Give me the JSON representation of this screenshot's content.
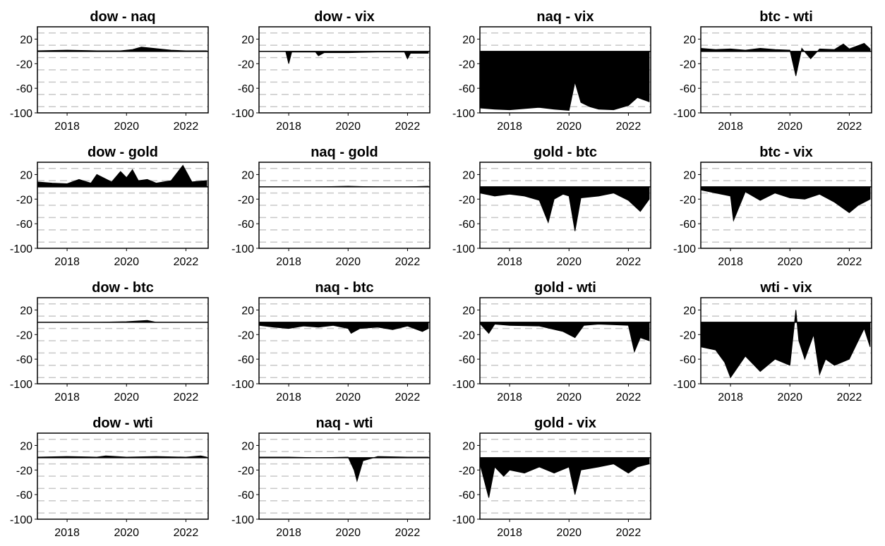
{
  "chart_data": {
    "type": "area",
    "x_start": "2017-01",
    "x_end": "2022-09",
    "x_ticks": [
      "2018",
      "2020",
      "2022"
    ],
    "y_ticks": [
      "20",
      "-20",
      "-60",
      "-100"
    ],
    "ylim": [
      -100,
      40
    ],
    "grid": true,
    "panels": [
      {
        "title": "dow - naq",
        "x": [
          2017.0,
          2018.0,
          2019.0,
          2019.8,
          2020.2,
          2020.5,
          2020.9,
          2021.5,
          2022.0,
          2022.7
        ],
        "y": [
          1,
          2,
          1,
          1,
          3,
          7,
          5,
          2,
          1,
          1
        ]
      },
      {
        "title": "dow - vix",
        "x": [
          2017.0,
          2017.9,
          2018.0,
          2018.1,
          2018.9,
          2019.0,
          2019.2,
          2020.0,
          2021.0,
          2021.9,
          2022.0,
          2022.1,
          2022.7
        ],
        "y": [
          0,
          0,
          -20,
          -1,
          -1,
          -7,
          -2,
          -2,
          -1,
          -1,
          -12,
          -3,
          -3
        ]
      },
      {
        "title": "naq - vix",
        "x": [
          2017.0,
          2017.5,
          2018.0,
          2018.5,
          2019.0,
          2019.5,
          2020.0,
          2020.2,
          2020.4,
          2020.7,
          2021.0,
          2021.5,
          2022.0,
          2022.3,
          2022.7
        ],
        "y": [
          -92,
          -94,
          -95,
          -93,
          -91,
          -94,
          -96,
          -50,
          -83,
          -90,
          -94,
          -95,
          -88,
          -75,
          -82
        ]
      },
      {
        "title": "btc - wti",
        "x": [
          2017.0,
          2017.5,
          2018.0,
          2018.5,
          2019.0,
          2019.5,
          2020.0,
          2020.2,
          2020.4,
          2020.7,
          2021.0,
          2021.5,
          2021.8,
          2022.0,
          2022.5,
          2022.7
        ],
        "y": [
          5,
          3,
          4,
          2,
          5,
          3,
          2,
          -40,
          5,
          -12,
          4,
          3,
          12,
          4,
          13,
          4
        ]
      },
      {
        "title": "dow - gold",
        "x": [
          2017.0,
          2017.5,
          2018.0,
          2018.4,
          2018.8,
          2019.0,
          2019.5,
          2019.8,
          2020.0,
          2020.2,
          2020.4,
          2020.7,
          2021.0,
          2021.5,
          2021.9,
          2022.2,
          2022.7
        ],
        "y": [
          8,
          6,
          5,
          12,
          6,
          20,
          8,
          25,
          15,
          28,
          10,
          12,
          6,
          10,
          35,
          8,
          10
        ]
      },
      {
        "title": "naq - gold",
        "x": [
          2017.0,
          2018.0,
          2019.0,
          2020.0,
          2021.0,
          2022.0,
          2022.7
        ],
        "y": [
          0,
          0,
          0,
          1,
          0,
          0,
          1
        ]
      },
      {
        "title": "gold - btc",
        "x": [
          2017.0,
          2017.5,
          2018.0,
          2018.5,
          2019.0,
          2019.3,
          2019.5,
          2019.8,
          2020.0,
          2020.2,
          2020.4,
          2021.0,
          2021.5,
          2022.0,
          2022.4,
          2022.7
        ],
        "y": [
          -10,
          -15,
          -12,
          -15,
          -22,
          -58,
          -20,
          -12,
          -15,
          -72,
          -18,
          -15,
          -10,
          -22,
          -40,
          -20
        ]
      },
      {
        "title": "btc - vix",
        "x": [
          2017.0,
          2017.5,
          2018.0,
          2018.1,
          2018.5,
          2019.0,
          2019.5,
          2020.0,
          2020.5,
          2021.0,
          2021.5,
          2022.0,
          2022.3,
          2022.7
        ],
        "y": [
          -5,
          -10,
          -15,
          -55,
          -8,
          -22,
          -10,
          -18,
          -20,
          -12,
          -25,
          -42,
          -30,
          -20
        ]
      },
      {
        "title": "dow - btc",
        "x": [
          2017.0,
          2018.0,
          2019.0,
          2020.0,
          2020.7,
          2021.0,
          2022.0,
          2022.7
        ],
        "y": [
          0,
          0,
          0,
          1,
          3,
          0,
          0,
          0
        ]
      },
      {
        "title": "naq - btc",
        "x": [
          2017.0,
          2017.5,
          2018.0,
          2018.5,
          2019.0,
          2019.5,
          2020.0,
          2020.1,
          2020.4,
          2021.0,
          2021.5,
          2022.0,
          2022.5,
          2022.7
        ],
        "y": [
          -5,
          -8,
          -10,
          -6,
          -8,
          -5,
          -10,
          -18,
          -10,
          -8,
          -12,
          -6,
          -15,
          -10
        ]
      },
      {
        "title": "gold - wti",
        "x": [
          2017.0,
          2017.3,
          2017.5,
          2018.0,
          2019.0,
          2019.8,
          2020.2,
          2020.5,
          2021.0,
          2022.0,
          2022.2,
          2022.4,
          2022.7
        ],
        "y": [
          -2,
          -18,
          -3,
          -5,
          -6,
          -15,
          -25,
          -5,
          -3,
          -5,
          -48,
          -25,
          -30
        ]
      },
      {
        "title": "wti - vix",
        "x": [
          2017.0,
          2017.5,
          2017.8,
          2018.0,
          2018.5,
          2019.0,
          2019.5,
          2020.0,
          2020.2,
          2020.3,
          2020.5,
          2020.8,
          2021.0,
          2021.2,
          2021.5,
          2022.0,
          2022.5,
          2022.7
        ],
        "y": [
          -40,
          -45,
          -65,
          -90,
          -55,
          -80,
          -60,
          -70,
          20,
          -30,
          -60,
          -20,
          -85,
          -60,
          -70,
          -60,
          -10,
          -40
        ]
      },
      {
        "title": "dow - wti",
        "x": [
          2017.0,
          2018.0,
          2019.0,
          2019.3,
          2020.0,
          2021.0,
          2022.0,
          2022.5,
          2022.7
        ],
        "y": [
          1,
          2,
          1,
          3,
          1,
          2,
          1,
          3,
          1
        ]
      },
      {
        "title": "naq - wti",
        "x": [
          2017.0,
          2018.0,
          2019.0,
          2020.0,
          2020.2,
          2020.3,
          2020.5,
          2021.0,
          2022.0,
          2022.7
        ],
        "y": [
          1,
          1,
          0,
          1,
          -20,
          -38,
          -5,
          2,
          1,
          1
        ]
      },
      {
        "title": "gold - vix",
        "x": [
          2017.0,
          2017.3,
          2017.5,
          2017.8,
          2018.0,
          2018.5,
          2019.0,
          2019.5,
          2020.0,
          2020.2,
          2020.4,
          2021.0,
          2021.5,
          2022.0,
          2022.3,
          2022.7
        ],
        "y": [
          -10,
          -65,
          -15,
          -30,
          -20,
          -25,
          -15,
          -25,
          -15,
          -60,
          -20,
          -15,
          -10,
          -25,
          -15,
          -10
        ]
      }
    ]
  }
}
